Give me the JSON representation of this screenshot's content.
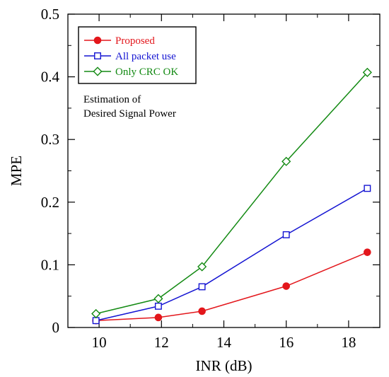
{
  "chart_data": {
    "type": "line",
    "title": "",
    "xlabel": "INR (dB)",
    "ylabel": "MPE",
    "xlim": [
      9,
      19
    ],
    "ylim": [
      0,
      0.5
    ],
    "xticks": [
      10,
      12,
      14,
      16,
      18
    ],
    "yticks": [
      0,
      0.1,
      0.2,
      0.3,
      0.4,
      0.5
    ],
    "xtick_labels": [
      "10",
      "12",
      "14",
      "16",
      "18"
    ],
    "ytick_labels": [
      "0",
      "0.1",
      "0.2",
      "0.3",
      "0.4",
      "0.5"
    ],
    "grid": false,
    "legend_position": "top-left",
    "annotation": [
      "Estimation of",
      "Desired Signal Power"
    ],
    "series": [
      {
        "name": "Proposed",
        "color": "#e3161b",
        "marker": "filled-circle",
        "x": [
          9.9,
          11.9,
          13.3,
          16.0,
          18.6
        ],
        "y": [
          0.011,
          0.016,
          0.026,
          0.066,
          0.12
        ]
      },
      {
        "name": "All packet use",
        "color": "#1414d2",
        "marker": "open-square",
        "x": [
          9.9,
          11.9,
          13.3,
          16.0,
          18.6
        ],
        "y": [
          0.011,
          0.034,
          0.065,
          0.148,
          0.222
        ]
      },
      {
        "name": "Only CRC OK",
        "color": "#138a13",
        "marker": "open-diamond",
        "x": [
          9.9,
          11.9,
          13.3,
          16.0,
          18.6
        ],
        "y": [
          0.022,
          0.046,
          0.097,
          0.265,
          0.407
        ]
      }
    ]
  }
}
